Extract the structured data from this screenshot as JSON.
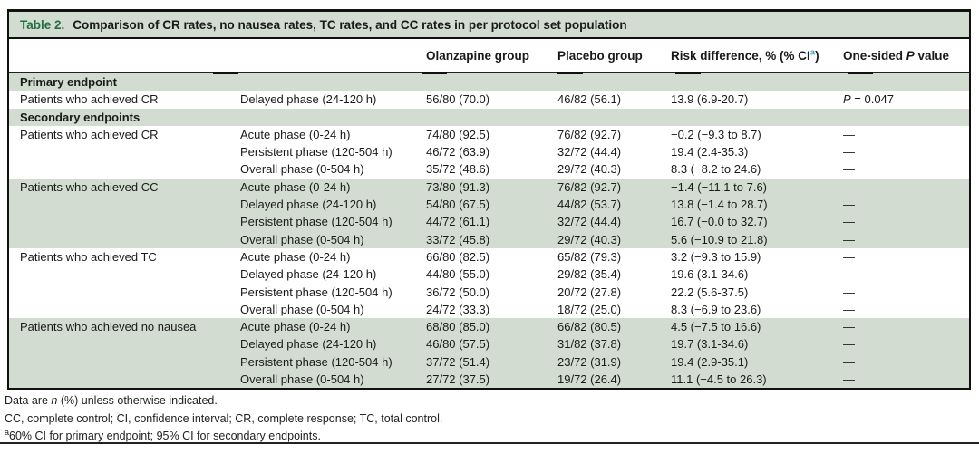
{
  "table": {
    "title_label": "Table 2.",
    "title_text": "Comparison of CR rates, no nausea rates, TC rates, and CC rates in per protocol set population",
    "header": {
      "olanzapine": "Olanzapine group",
      "placebo": "Placebo group",
      "risk_pre": "Risk difference, % (% CI",
      "risk_sup": "a",
      "risk_post": ")",
      "p_pre": "One-sided ",
      "p_italic": "P",
      "p_post": " value"
    },
    "sections": [
      {
        "header": "Primary endpoint",
        "groups": [
          {
            "name": "Patients who achieved CR",
            "shaded": false,
            "rows": [
              {
                "phase": "Delayed phase (24-120 h)",
                "olanzapine": "56/80 (70.0)",
                "placebo": "46/82 (56.1)",
                "risk": "13.9 (6.9-20.7)",
                "p_italic": "P",
                "p_text": " = 0.047"
              }
            ]
          }
        ]
      },
      {
        "header": "Secondary endpoints",
        "groups": [
          {
            "name": "Patients who achieved CR",
            "shaded": false,
            "rows": [
              {
                "phase": "Acute phase (0-24 h)",
                "olanzapine": "74/80 (92.5)",
                "placebo": "76/82 (92.7)",
                "risk": "−0.2 (−9.3 to 8.7)",
                "p_text": "—"
              },
              {
                "phase": "Persistent phase (120-504 h)",
                "olanzapine": "46/72 (63.9)",
                "placebo": "32/72 (44.4)",
                "risk": "19.4 (2.4-35.3)",
                "p_text": "—"
              },
              {
                "phase": "Overall phase (0-504 h)",
                "olanzapine": "35/72 (48.6)",
                "placebo": "29/72 (40.3)",
                "risk": "8.3 (−8.2 to 24.6)",
                "p_text": "—"
              }
            ]
          },
          {
            "name": "Patients who achieved CC",
            "shaded": true,
            "rows": [
              {
                "phase": "Acute phase (0-24 h)",
                "olanzapine": "73/80 (91.3)",
                "placebo": "76/82 (92.7)",
                "risk": "−1.4 (−11.1 to 7.6)",
                "p_text": "—"
              },
              {
                "phase": "Delayed phase (24-120 h)",
                "olanzapine": "54/80 (67.5)",
                "placebo": "44/82 (53.7)",
                "risk": "13.8 (−1.4 to 28.7)",
                "p_text": "—"
              },
              {
                "phase": "Persistent phase (120-504 h)",
                "olanzapine": "44/72 (61.1)",
                "placebo": "32/72 (44.4)",
                "risk": "16.7 (−0.0 to 32.7)",
                "p_text": "—"
              },
              {
                "phase": "Overall phase (0-504 h)",
                "olanzapine": "33/72 (45.8)",
                "placebo": "29/72 (40.3)",
                "risk": "5.6 (−10.9 to 21.8)",
                "p_text": "—"
              }
            ]
          },
          {
            "name": "Patients who achieved TC",
            "shaded": false,
            "rows": [
              {
                "phase": "Acute phase (0-24 h)",
                "olanzapine": "66/80 (82.5)",
                "placebo": "65/82 (79.3)",
                "risk": "3.2 (−9.3 to 15.9)",
                "p_text": "—"
              },
              {
                "phase": "Delayed phase (24-120 h)",
                "olanzapine": "44/80 (55.0)",
                "placebo": "29/82 (35.4)",
                "risk": "19.6 (3.1-34.6)",
                "p_text": "—"
              },
              {
                "phase": "Persistent phase (120-504 h)",
                "olanzapine": "36/72 (50.0)",
                "placebo": "20/72 (27.8)",
                "risk": "22.2 (5.6-37.5)",
                "p_text": "—"
              },
              {
                "phase": "Overall phase (0-504 h)",
                "olanzapine": "24/72 (33.3)",
                "placebo": "18/72 (25.0)",
                "risk": "8.3 (−6.9 to 23.6)",
                "p_text": "—"
              }
            ]
          },
          {
            "name": "Patients who achieved no nausea",
            "shaded": true,
            "rows": [
              {
                "phase": "Acute phase (0-24 h)",
                "olanzapine": "68/80 (85.0)",
                "placebo": "66/82 (80.5)",
                "risk": "4.5 (−7.5 to 16.6)",
                "p_text": "—"
              },
              {
                "phase": "Delayed phase (24-120 h)",
                "olanzapine": "46/80 (57.5)",
                "placebo": "31/82 (37.8)",
                "risk": "19.7 (3.1-34.6)",
                "p_text": "—"
              },
              {
                "phase": "Persistent phase (120-504 h)",
                "olanzapine": "37/72 (51.4)",
                "placebo": "23/72 (31.9)",
                "risk": "19.4 (2.9-35.1)",
                "p_text": "—"
              },
              {
                "phase": "Overall phase (0-504 h)",
                "olanzapine": "27/72 (37.5)",
                "placebo": "19/72 (26.4)",
                "risk": "11.1 (−4.5 to 26.3)",
                "p_text": "—"
              }
            ]
          }
        ]
      }
    ]
  },
  "footnotes": {
    "line1_pre": "Data are ",
    "line1_italic": "n",
    "line1_post": " (%) unless otherwise indicated.",
    "line2": "CC, complete control; CI, confidence interval; CR, complete response; TC, total control.",
    "line3_sup": "a",
    "line3_text": "60% CI for primary endpoint; 95% CI for secondary endpoints."
  },
  "colors": {
    "band_green": "#d2dcd0",
    "title_green": "#266e43",
    "superscript_blue": "#3fa0c6"
  }
}
